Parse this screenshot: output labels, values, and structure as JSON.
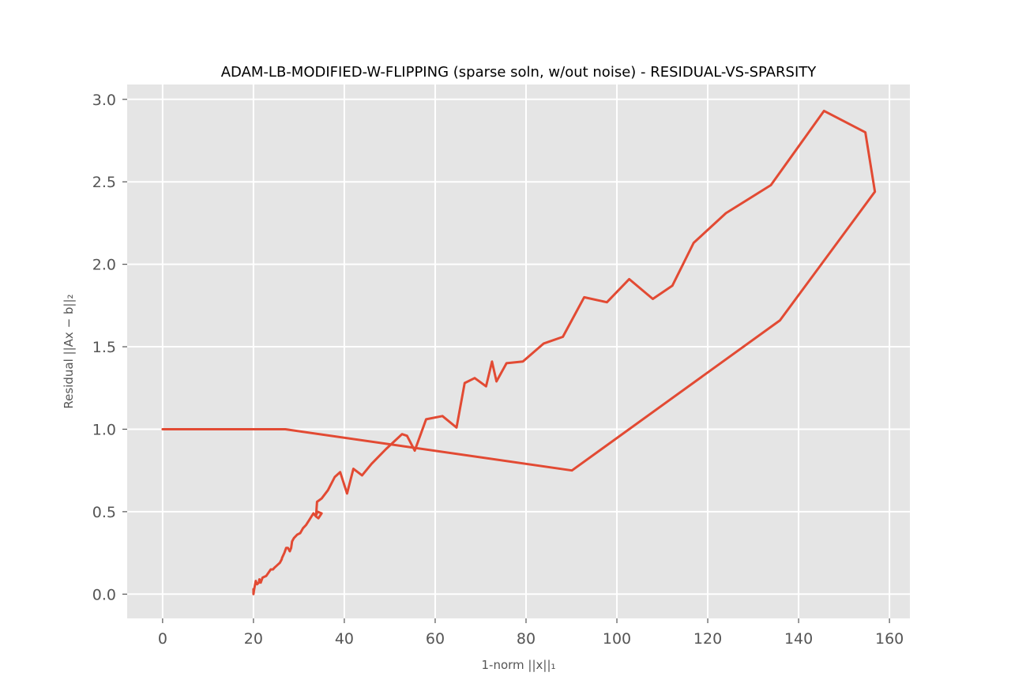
{
  "chart_data": {
    "type": "line",
    "title": "ADAM-LB-MODIFIED-W-FLIPPING (sparse soln, w/out noise) - RESIDUAL-VS-SPARSITY",
    "xlabel": "1-norm ||x||₁",
    "ylabel": "Residual ||Ax − b||₂",
    "xlim": [
      -7.8,
      164.5
    ],
    "ylim": [
      -0.147,
      3.09
    ],
    "xticks": [
      0,
      20,
      40,
      60,
      80,
      100,
      120,
      140,
      160
    ],
    "yticks": [
      0.0,
      0.5,
      1.0,
      1.5,
      2.0,
      2.5,
      3.0
    ],
    "xtick_labels": [
      "0",
      "20",
      "40",
      "60",
      "80",
      "100",
      "120",
      "140",
      "160"
    ],
    "ytick_labels": [
      "0.0",
      "0.5",
      "1.0",
      "1.5",
      "2.0",
      "2.5",
      "3.0"
    ],
    "grid": true,
    "series": [
      {
        "color": "#E24A33",
        "x": [
          0.0,
          27.0,
          90.1,
          135.9,
          156.8,
          154.7,
          145.6,
          133.9,
          124.0,
          116.9,
          112.2,
          107.9,
          102.7,
          97.8,
          92.8,
          88.1,
          83.9,
          79.3,
          75.7,
          73.5,
          72.5,
          71.2,
          68.7,
          66.5,
          64.7,
          61.6,
          58.0,
          55.5,
          53.8,
          52.7,
          49.2,
          46.0,
          43.9,
          42.0,
          40.6,
          39.1,
          37.9,
          36.4,
          35.0,
          34.0,
          33.9,
          33.8,
          34.1,
          35.0,
          34.3,
          33.8,
          33.2,
          32.3,
          31.6,
          30.9,
          30.3,
          29.6,
          28.9,
          28.5,
          28.3,
          28.0,
          27.6,
          27.2,
          26.8,
          26.3,
          26.2,
          25.8,
          25.4,
          25.0,
          24.6,
          24.3,
          23.8,
          22.8,
          22.0,
          21.6,
          21.3,
          21.2,
          20.8,
          20.5,
          20.3,
          20.1,
          20.0,
          20.0
        ],
        "y": [
          1.0,
          1.0,
          0.75,
          1.66,
          2.44,
          2.8,
          2.93,
          2.48,
          2.31,
          2.13,
          1.87,
          1.79,
          1.91,
          1.77,
          1.8,
          1.56,
          1.52,
          1.41,
          1.4,
          1.29,
          1.41,
          1.26,
          1.31,
          1.28,
          1.01,
          1.08,
          1.06,
          0.87,
          0.96,
          0.97,
          0.88,
          0.79,
          0.72,
          0.76,
          0.61,
          0.74,
          0.71,
          0.63,
          0.58,
          0.56,
          0.52,
          0.48,
          0.5,
          0.49,
          0.46,
          0.47,
          0.49,
          0.45,
          0.42,
          0.4,
          0.37,
          0.36,
          0.34,
          0.32,
          0.28,
          0.26,
          0.28,
          0.28,
          0.25,
          0.22,
          0.21,
          0.19,
          0.18,
          0.17,
          0.16,
          0.15,
          0.15,
          0.11,
          0.1,
          0.07,
          0.09,
          0.07,
          0.06,
          0.08,
          0.05,
          0.02,
          0.0,
          0.03
        ]
      }
    ]
  }
}
